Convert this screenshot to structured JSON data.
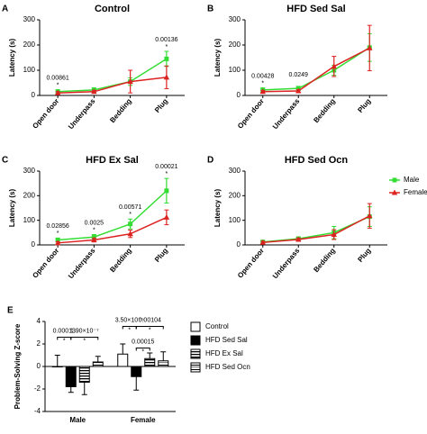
{
  "chart_data": [
    {
      "type": "line",
      "panel": "A",
      "title": "Control",
      "ylabel": "Latency (s)",
      "categories": [
        "Open door",
        "Underpass",
        "Bedding",
        "Plug"
      ],
      "ylim": [
        0,
        300
      ],
      "yticks": [
        0,
        100,
        200,
        300
      ],
      "series": [
        {
          "name": "Male",
          "color": "#33dd33",
          "marker": "square",
          "values": [
            15,
            22,
            55,
            145
          ],
          "errors": [
            8,
            8,
            15,
            30
          ]
        },
        {
          "name": "Female",
          "color": "#dd2222",
          "marker": "triangle",
          "values": [
            10,
            15,
            55,
            72
          ],
          "errors": [
            5,
            5,
            45,
            45
          ]
        }
      ],
      "annotations": [
        "0.00861",
        null,
        null,
        "0.00136"
      ],
      "annotation_marks": [
        "*",
        null,
        null,
        "*"
      ]
    },
    {
      "type": "line",
      "panel": "B",
      "title": "HFD Sed Sal",
      "ylabel": "Latency (s)",
      "categories": [
        "Open door",
        "Underpass",
        "Bedding",
        "Plug"
      ],
      "ylim": [
        0,
        300
      ],
      "yticks": [
        0,
        100,
        200,
        300
      ],
      "series": [
        {
          "name": "Male",
          "color": "#33dd33",
          "marker": "square",
          "values": [
            22,
            28,
            100,
            190
          ],
          "errors": [
            8,
            8,
            20,
            55
          ]
        },
        {
          "name": "Female",
          "color": "#dd2222",
          "marker": "triangle",
          "values": [
            15,
            18,
            115,
            188
          ],
          "errors": [
            5,
            5,
            40,
            90
          ]
        }
      ],
      "annotations": [
        "0.00428",
        "0.0249",
        null,
        null
      ],
      "annotation_marks": [
        "*",
        null,
        null,
        null
      ]
    },
    {
      "type": "line",
      "panel": "C",
      "title": "HFD Ex Sal",
      "ylabel": "Latency (s)",
      "categories": [
        "Open door",
        "Underpass",
        "Bedding",
        "Plug"
      ],
      "ylim": [
        0,
        300
      ],
      "yticks": [
        0,
        100,
        200,
        300
      ],
      "series": [
        {
          "name": "Male",
          "color": "#33dd33",
          "marker": "square",
          "values": [
            20,
            32,
            85,
            220
          ],
          "errors": [
            8,
            10,
            20,
            50
          ]
        },
        {
          "name": "Female",
          "color": "#dd2222",
          "marker": "triangle",
          "values": [
            8,
            20,
            45,
            112
          ],
          "errors": [
            5,
            8,
            15,
            30
          ]
        }
      ],
      "annotations": [
        "0.02856",
        "0.0025",
        "0.00571",
        "0.00021"
      ],
      "annotation_marks": [
        "*",
        "*",
        "*",
        "*"
      ]
    },
    {
      "type": "line",
      "panel": "D",
      "title": "HFD Sed Ocn",
      "ylabel": "Latency (s)",
      "categories": [
        "Open door",
        "Underpass",
        "Bedding",
        "Plug"
      ],
      "ylim": [
        0,
        300
      ],
      "yticks": [
        0,
        100,
        200,
        300
      ],
      "series": [
        {
          "name": "Male",
          "color": "#33dd33",
          "marker": "square",
          "values": [
            12,
            25,
            50,
            115
          ],
          "errors": [
            5,
            8,
            25,
            40
          ]
        },
        {
          "name": "Female",
          "color": "#dd2222",
          "marker": "triangle",
          "values": [
            10,
            22,
            42,
            118
          ],
          "errors": [
            5,
            6,
            20,
            50
          ]
        }
      ],
      "legend": "right"
    },
    {
      "type": "bar",
      "panel": "E",
      "ylabel": "Problem-Solving Z-score",
      "categories": [
        "Male",
        "Female"
      ],
      "ylim": [
        -4,
        4
      ],
      "yticks": [
        -4,
        -2,
        0,
        2,
        4
      ],
      "series": [
        {
          "name": "Control",
          "color": "#000000",
          "fill": "none",
          "values": [
            0,
            1.1
          ],
          "errors": [
            1.0,
            0.9
          ]
        },
        {
          "name": "HFD Sed Sal",
          "color": "#000000",
          "fill": "solid",
          "values": [
            -1.8,
            -0.9
          ],
          "errors": [
            0.5,
            1.2
          ]
        },
        {
          "name": "HFD Ex Sal",
          "color": "#000000",
          "fill": "stripes",
          "values": [
            -1.4,
            0.7
          ],
          "errors": [
            1.1,
            0.5
          ]
        },
        {
          "name": "HFD Sed Ocn",
          "color": "#000000",
          "fill": "bands",
          "values": [
            0.4,
            0.5
          ],
          "errors": [
            0.5,
            0.8
          ]
        }
      ],
      "comparisons": [
        {
          "label": "0.00013",
          "mark": "*",
          "category": "Male",
          "from": "Control",
          "to": "HFD Sed Sal"
        },
        {
          "label": "1.90×10⁻⁷",
          "mark": "*",
          "category": "Male",
          "from": "HFD Sed Sal",
          "to": "HFD Sed Ocn"
        },
        {
          "label": "3.50×10⁻⁵",
          "mark": "*",
          "category": "Female",
          "from": "Control",
          "to": "HFD Sed Sal"
        },
        {
          "label": "0.00104",
          "mark": "*",
          "category": "Female",
          "from": "HFD Sed Sal",
          "to": "HFD Sed Ocn"
        },
        {
          "label": "0.00015",
          "mark": "*",
          "category": "Female",
          "from": "HFD Sed Sal",
          "to": "HFD Ex Sal"
        }
      ],
      "legend": "right"
    }
  ]
}
